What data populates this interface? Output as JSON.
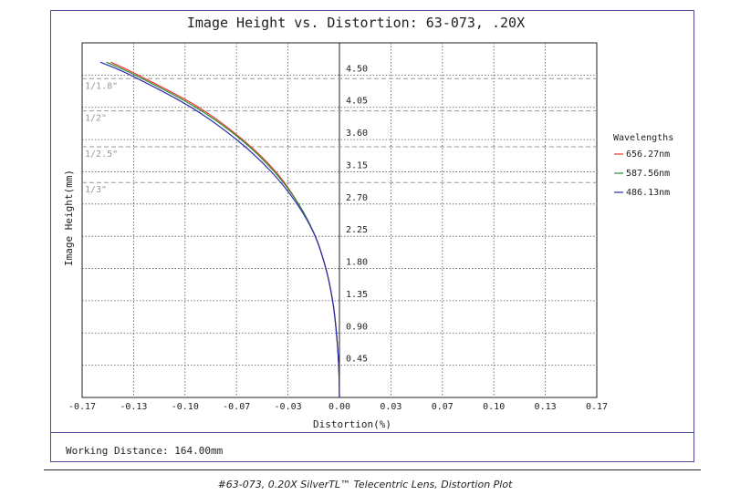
{
  "chart_data": {
    "type": "line",
    "title": "Image Height vs. Distortion: 63-073, .20X",
    "xlabel": "Distortion(%)",
    "ylabel": "Image Height(mm)",
    "xlim": [
      -0.17,
      0.17
    ],
    "ylim": [
      0,
      4.95
    ],
    "x_ticks": [
      "-0.17",
      "-0.13",
      "-0.10",
      "-0.07",
      "-0.03",
      "0.00",
      "0.03",
      "0.07",
      "0.10",
      "0.13",
      "0.17"
    ],
    "y_ticks": [
      "0.45",
      "0.90",
      "1.35",
      "1.80",
      "2.25",
      "2.70",
      "3.15",
      "3.60",
      "4.05",
      "4.50"
    ],
    "sensor_lines": [
      {
        "label": "1/1.8\"",
        "y": 4.45
      },
      {
        "label": "1/2\"",
        "y": 4.0
      },
      {
        "label": "1/2.5\"",
        "y": 3.5
      },
      {
        "label": "1/3\"",
        "y": 3.0
      }
    ],
    "legend_title": "Wavelengths",
    "legend_position": "right",
    "grid": true,
    "series": [
      {
        "name": "656.27nm",
        "color": "#e8382e",
        "points": [
          [
            0.0,
            0.0
          ],
          [
            -0.0005,
            0.45
          ],
          [
            -0.002,
            0.9
          ],
          [
            -0.0045,
            1.35
          ],
          [
            -0.009,
            1.8
          ],
          [
            -0.016,
            2.25
          ],
          [
            -0.027,
            2.7
          ],
          [
            -0.042,
            3.15
          ],
          [
            -0.064,
            3.6
          ],
          [
            -0.093,
            4.05
          ],
          [
            -0.133,
            4.5
          ],
          [
            -0.151,
            4.68
          ]
        ]
      },
      {
        "name": "587.56nm",
        "color": "#2e8b2e",
        "points": [
          [
            0.0,
            0.0
          ],
          [
            -0.0005,
            0.45
          ],
          [
            -0.002,
            0.9
          ],
          [
            -0.0045,
            1.35
          ],
          [
            -0.009,
            1.8
          ],
          [
            -0.016,
            2.25
          ],
          [
            -0.027,
            2.7
          ],
          [
            -0.043,
            3.15
          ],
          [
            -0.065,
            3.6
          ],
          [
            -0.095,
            4.05
          ],
          [
            -0.135,
            4.5
          ],
          [
            -0.154,
            4.68
          ]
        ]
      },
      {
        "name": "486.13nm",
        "color": "#2b2bb0",
        "points": [
          [
            0.0,
            0.0
          ],
          [
            -0.0005,
            0.45
          ],
          [
            -0.002,
            0.9
          ],
          [
            -0.0045,
            1.35
          ],
          [
            -0.009,
            1.8
          ],
          [
            -0.016,
            2.25
          ],
          [
            -0.028,
            2.7
          ],
          [
            -0.045,
            3.15
          ],
          [
            -0.068,
            3.6
          ],
          [
            -0.098,
            4.05
          ],
          [
            -0.138,
            4.5
          ],
          [
            -0.158,
            4.68
          ]
        ]
      }
    ]
  },
  "working_distance": "Working Distance: 164.00mm",
  "caption": "#63-073, 0.20X SilverTL™ Telecentric Lens, Distortion Plot"
}
